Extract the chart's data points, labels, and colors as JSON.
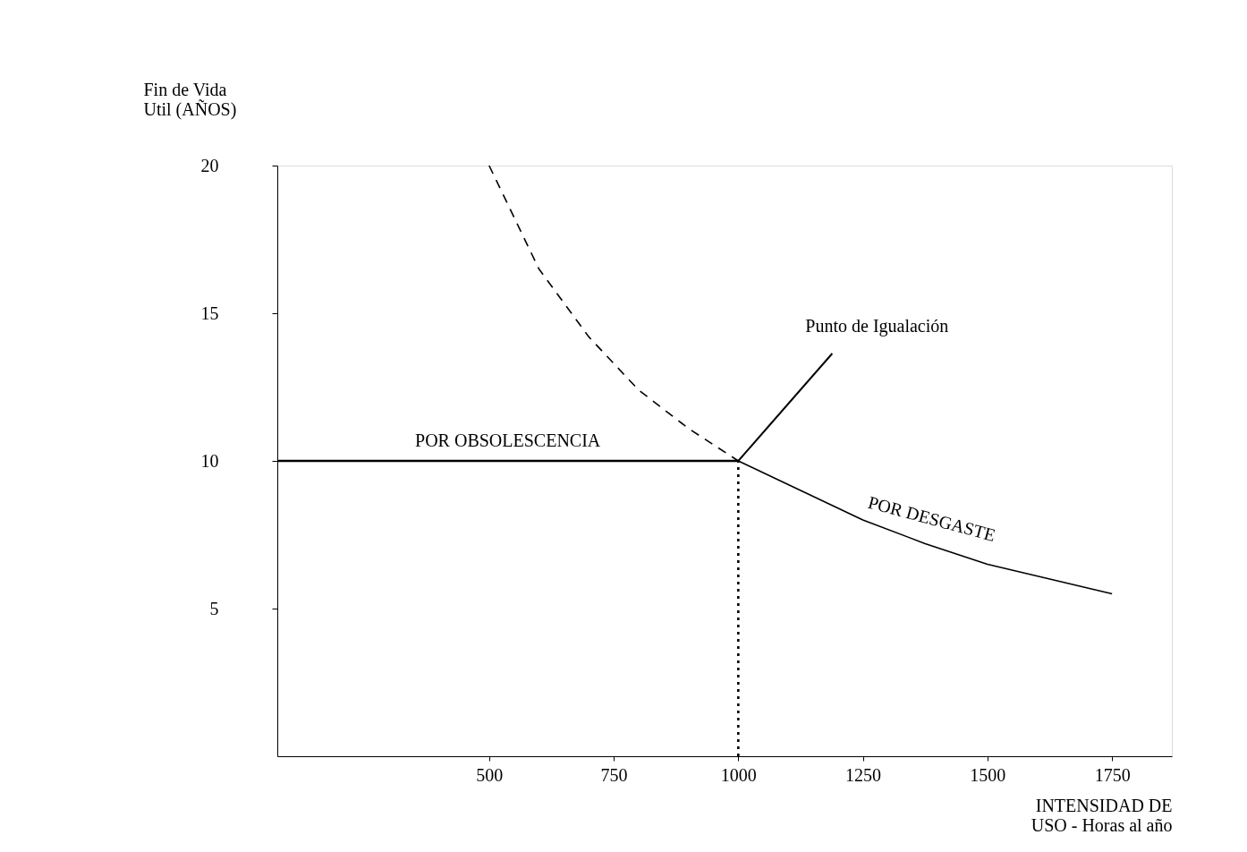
{
  "chart_data": {
    "type": "line",
    "ylabel": "Fin de Vida\nUtil (AÑOS)",
    "xlabel": "INTENSIDAD DE\nUSO - Horas al año",
    "xlim": [
      75,
      1870
    ],
    "xticks": [
      500,
      750,
      1000,
      1250,
      1500,
      1750
    ],
    "ylim": [
      0,
      20
    ],
    "yticks": [
      5,
      10,
      15,
      20
    ],
    "grid": false,
    "series": [
      {
        "name": "POR OBSOLESCENCIA",
        "color": "#000000",
        "line_style": "solid",
        "x": [
          75,
          1000
        ],
        "values": [
          10,
          10
        ]
      },
      {
        "color": "#000000",
        "line_style": "dashed",
        "x": [
          500,
          600,
          700,
          800,
          900,
          1000
        ],
        "values": [
          20,
          16.5,
          14.2,
          12.4,
          11.1,
          10
        ]
      },
      {
        "name": "POR DESGASTE",
        "color": "#000000",
        "line_style": "solid",
        "x": [
          1000,
          1125,
          1250,
          1375,
          1500,
          1625,
          1750
        ],
        "values": [
          10,
          9,
          8,
          7.2,
          6.5,
          6.0,
          5.5
        ]
      },
      {
        "color": "#000000",
        "line_style": "dotted",
        "x": [
          1000,
          1000
        ],
        "values": [
          0,
          10
        ]
      }
    ],
    "annotations": [
      {
        "text": "Punto de Igualación",
        "x": 1000,
        "y": 10
      }
    ]
  }
}
